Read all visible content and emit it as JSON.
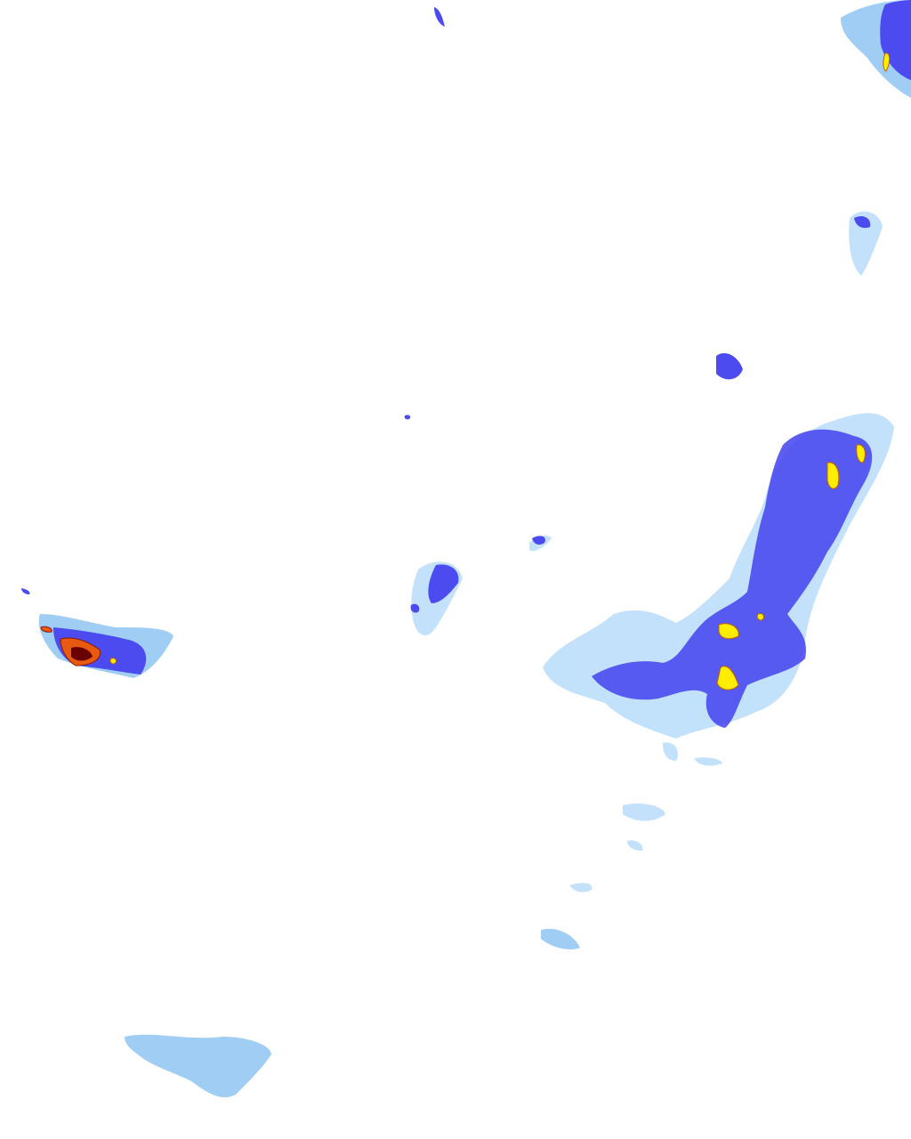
{
  "map": {
    "layer": "precipitation-radar",
    "background": "#ffffff",
    "intensity_colors": {
      "very_light": "#b8dcfa",
      "light": "#8fc4f2",
      "moderate": "#4b4bf0",
      "heavy": "#ffee00",
      "very_heavy": "#e85a10",
      "extreme": "#6a0000"
    }
  }
}
